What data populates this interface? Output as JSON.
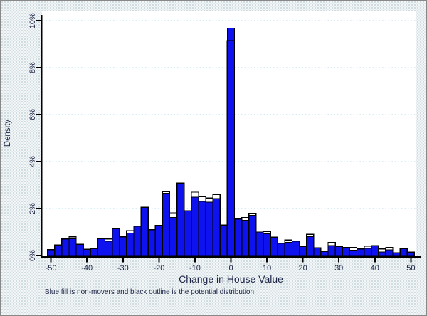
{
  "chart_data": {
    "type": "bar",
    "title": "",
    "xlabel": "Change in House Value",
    "ylabel": "Density",
    "note": "Blue fill is non-movers and black outline is the potential distribution",
    "legend": {
      "blue_fill": "non-movers",
      "black_outline": "potential distribution"
    },
    "xlim": [
      -52.5,
      52.5
    ],
    "ylim": [
      0,
      10.4
    ],
    "grid": "horizontal-dashed",
    "xticks": [
      -50,
      -40,
      -30,
      -20,
      -10,
      0,
      10,
      20,
      30,
      40,
      50
    ],
    "yticks": [
      {
        "v": 0,
        "label": "0%"
      },
      {
        "v": 2,
        "label": "2%"
      },
      {
        "v": 4,
        "label": "4%"
      },
      {
        "v": 6,
        "label": "6%"
      },
      {
        "v": 8,
        "label": "8%"
      },
      {
        "v": 10,
        "label": "10%"
      }
    ],
    "bin_width": 2,
    "series": [
      {
        "name": "non-movers (blue fill)",
        "key": "blue"
      },
      {
        "name": "potential distribution (black outline)",
        "key": "outline"
      }
    ],
    "bins": [
      {
        "x": -50,
        "blue": 0.25,
        "outline": 0.25
      },
      {
        "x": -48,
        "blue": 0.45,
        "outline": 0.45
      },
      {
        "x": -46,
        "blue": 0.7,
        "outline": 0.7
      },
      {
        "x": -44,
        "blue": 0.72,
        "outline": 0.8
      },
      {
        "x": -42,
        "blue": 0.48,
        "outline": 0.48
      },
      {
        "x": -40,
        "blue": 0.27,
        "outline": 0.27
      },
      {
        "x": -38,
        "blue": 0.3,
        "outline": 0.3
      },
      {
        "x": -36,
        "blue": 0.72,
        "outline": 0.72
      },
      {
        "x": -34,
        "blue": 0.6,
        "outline": 0.7
      },
      {
        "x": -32,
        "blue": 1.15,
        "outline": 1.15
      },
      {
        "x": -30,
        "blue": 0.8,
        "outline": 0.8
      },
      {
        "x": -28,
        "blue": 0.95,
        "outline": 1.05
      },
      {
        "x": -26,
        "blue": 1.25,
        "outline": 1.25
      },
      {
        "x": -24,
        "blue": 2.05,
        "outline": 2.05
      },
      {
        "x": -22,
        "blue": 1.1,
        "outline": 1.1
      },
      {
        "x": -20,
        "blue": 1.28,
        "outline": 1.28
      },
      {
        "x": -18,
        "blue": 2.65,
        "outline": 2.72
      },
      {
        "x": -16,
        "blue": 1.62,
        "outline": 1.82
      },
      {
        "x": -14,
        "blue": 3.08,
        "outline": 3.08
      },
      {
        "x": -12,
        "blue": 1.9,
        "outline": 1.9
      },
      {
        "x": -10,
        "blue": 2.48,
        "outline": 2.7
      },
      {
        "x": -8,
        "blue": 2.3,
        "outline": 2.5
      },
      {
        "x": -6,
        "blue": 2.28,
        "outline": 2.45
      },
      {
        "x": -4,
        "blue": 2.42,
        "outline": 2.6
      },
      {
        "x": -2,
        "blue": 1.3,
        "outline": 1.3
      },
      {
        "x": 0,
        "blue": 9.68,
        "outline": 9.15
      },
      {
        "x": 2,
        "blue": 1.55,
        "outline": 1.55
      },
      {
        "x": 4,
        "blue": 1.5,
        "outline": 1.62
      },
      {
        "x": 6,
        "blue": 1.72,
        "outline": 1.8
      },
      {
        "x": 8,
        "blue": 1.0,
        "outline": 1.0
      },
      {
        "x": 10,
        "blue": 0.92,
        "outline": 1.02
      },
      {
        "x": 12,
        "blue": 0.78,
        "outline": 0.78
      },
      {
        "x": 14,
        "blue": 0.52,
        "outline": 0.52
      },
      {
        "x": 16,
        "blue": 0.56,
        "outline": 0.66
      },
      {
        "x": 18,
        "blue": 0.62,
        "outline": 0.62
      },
      {
        "x": 20,
        "blue": 0.38,
        "outline": 0.38
      },
      {
        "x": 22,
        "blue": 0.8,
        "outline": 0.9
      },
      {
        "x": 24,
        "blue": 0.33,
        "outline": 0.33
      },
      {
        "x": 26,
        "blue": 0.18,
        "outline": 0.18
      },
      {
        "x": 28,
        "blue": 0.42,
        "outline": 0.55
      },
      {
        "x": 30,
        "blue": 0.38,
        "outline": 0.38
      },
      {
        "x": 32,
        "blue": 0.35,
        "outline": 0.35
      },
      {
        "x": 34,
        "blue": 0.22,
        "outline": 0.35
      },
      {
        "x": 36,
        "blue": 0.28,
        "outline": 0.28
      },
      {
        "x": 38,
        "blue": 0.3,
        "outline": 0.4
      },
      {
        "x": 40,
        "blue": 0.42,
        "outline": 0.42
      },
      {
        "x": 42,
        "blue": 0.15,
        "outline": 0.28
      },
      {
        "x": 44,
        "blue": 0.25,
        "outline": 0.35
      },
      {
        "x": 46,
        "blue": 0.12,
        "outline": 0.12
      },
      {
        "x": 48,
        "blue": 0.3,
        "outline": 0.3
      },
      {
        "x": 50,
        "blue": 0.12,
        "outline": 0.15
      }
    ],
    "colors": {
      "background": "#f2f6f7",
      "plot_bg": "#ffffff",
      "grid": "#a9d9e8",
      "bar_fill": "#0d12ee",
      "bar_stroke": "#000000",
      "axis": "#000000",
      "text": "#1c2244"
    }
  }
}
